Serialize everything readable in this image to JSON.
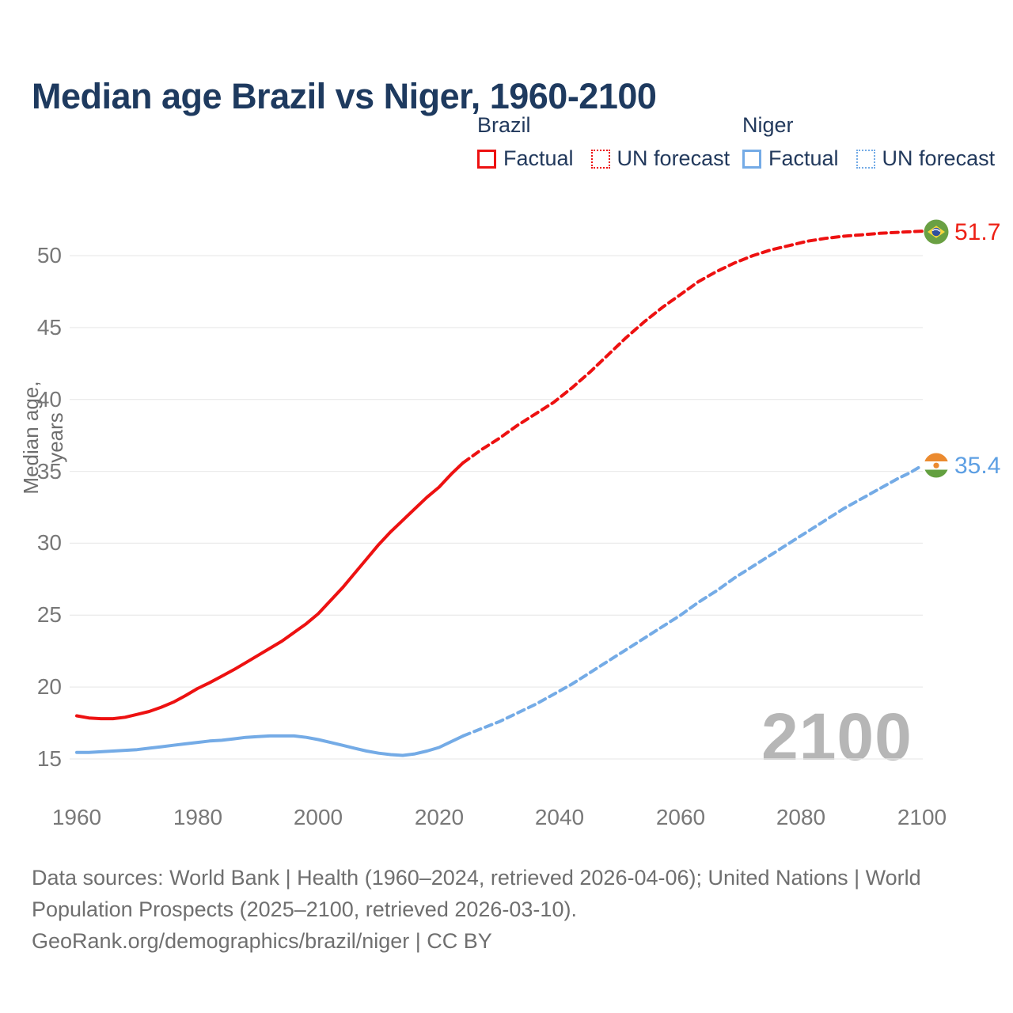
{
  "title": "Median age Brazil vs Niger, 1960-2100",
  "legend": {
    "groups": [
      {
        "name": "Brazil",
        "color": "#ed1111",
        "items": [
          {
            "label": "Factual",
            "style": "solid"
          },
          {
            "label": "UN forecast",
            "style": "dotted"
          }
        ]
      },
      {
        "name": "Niger",
        "color": "#74abe6",
        "items": [
          {
            "label": "Factual",
            "style": "solid"
          },
          {
            "label": "UN forecast",
            "style": "dotted"
          }
        ]
      }
    ]
  },
  "chart_data": {
    "type": "line",
    "title": "Median age Brazil vs Niger, 1960-2100",
    "xlabel": "",
    "ylabel": "Median age, years",
    "x_ticks": [
      1960,
      1980,
      2000,
      2020,
      2040,
      2060,
      2080,
      2100
    ],
    "y_ticks": [
      15,
      20,
      25,
      30,
      35,
      40,
      45,
      50
    ],
    "xlim": [
      1960,
      2100
    ],
    "ylim": [
      15,
      50
    ],
    "grid": "horizontal-only",
    "legend_position": "top-right",
    "watermark": "2100",
    "series": [
      {
        "name": "Brazil — Factual",
        "color": "#ed1111",
        "dash": false,
        "points": [
          [
            1960,
            18.0
          ],
          [
            1962,
            17.85
          ],
          [
            1964,
            17.8
          ],
          [
            1966,
            17.8
          ],
          [
            1968,
            17.9
          ],
          [
            1970,
            18.1
          ],
          [
            1972,
            18.3
          ],
          [
            1974,
            18.6
          ],
          [
            1976,
            18.95
          ],
          [
            1978,
            19.4
          ],
          [
            1980,
            19.9
          ],
          [
            1982,
            20.3
          ],
          [
            1984,
            20.75
          ],
          [
            1986,
            21.2
          ],
          [
            1988,
            21.7
          ],
          [
            1990,
            22.2
          ],
          [
            1992,
            22.7
          ],
          [
            1994,
            23.2
          ],
          [
            1996,
            23.8
          ],
          [
            1998,
            24.4
          ],
          [
            2000,
            25.1
          ],
          [
            2002,
            26.0
          ],
          [
            2004,
            26.9
          ],
          [
            2006,
            27.9
          ],
          [
            2008,
            28.9
          ],
          [
            2010,
            29.9
          ],
          [
            2012,
            30.8
          ],
          [
            2014,
            31.6
          ],
          [
            2016,
            32.4
          ],
          [
            2018,
            33.2
          ],
          [
            2020,
            33.9
          ],
          [
            2022,
            34.8
          ],
          [
            2024,
            35.6
          ]
        ]
      },
      {
        "name": "Brazil — UN forecast",
        "color": "#ed1111",
        "dash": true,
        "end_label": "51.7",
        "points": [
          [
            2024,
            35.6
          ],
          [
            2027,
            36.5
          ],
          [
            2030,
            37.3
          ],
          [
            2033,
            38.2
          ],
          [
            2036,
            39.0
          ],
          [
            2039,
            39.8
          ],
          [
            2042,
            40.8
          ],
          [
            2045,
            41.9
          ],
          [
            2048,
            43.1
          ],
          [
            2051,
            44.3
          ],
          [
            2054,
            45.4
          ],
          [
            2057,
            46.4
          ],
          [
            2060,
            47.3
          ],
          [
            2063,
            48.2
          ],
          [
            2066,
            48.9
          ],
          [
            2069,
            49.5
          ],
          [
            2072,
            50.0
          ],
          [
            2075,
            50.4
          ],
          [
            2078,
            50.7
          ],
          [
            2081,
            51.0
          ],
          [
            2084,
            51.2
          ],
          [
            2087,
            51.35
          ],
          [
            2090,
            51.45
          ],
          [
            2093,
            51.55
          ],
          [
            2096,
            51.62
          ],
          [
            2100,
            51.7
          ]
        ]
      },
      {
        "name": "Niger — Factual",
        "color": "#74abe6",
        "dash": false,
        "points": [
          [
            1960,
            15.45
          ],
          [
            1962,
            15.45
          ],
          [
            1964,
            15.5
          ],
          [
            1966,
            15.55
          ],
          [
            1968,
            15.6
          ],
          [
            1970,
            15.65
          ],
          [
            1972,
            15.75
          ],
          [
            1974,
            15.85
          ],
          [
            1976,
            15.95
          ],
          [
            1978,
            16.05
          ],
          [
            1980,
            16.15
          ],
          [
            1982,
            16.25
          ],
          [
            1984,
            16.3
          ],
          [
            1986,
            16.4
          ],
          [
            1988,
            16.5
          ],
          [
            1990,
            16.55
          ],
          [
            1992,
            16.6
          ],
          [
            1994,
            16.6
          ],
          [
            1996,
            16.6
          ],
          [
            1998,
            16.5
          ],
          [
            2000,
            16.35
          ],
          [
            2002,
            16.15
          ],
          [
            2004,
            15.95
          ],
          [
            2006,
            15.75
          ],
          [
            2008,
            15.55
          ],
          [
            2010,
            15.4
          ],
          [
            2012,
            15.3
          ],
          [
            2014,
            15.25
          ],
          [
            2016,
            15.35
          ],
          [
            2018,
            15.55
          ],
          [
            2020,
            15.8
          ],
          [
            2022,
            16.2
          ],
          [
            2024,
            16.6
          ]
        ]
      },
      {
        "name": "Niger — UN forecast",
        "color": "#74abe6",
        "dash": true,
        "end_label": "35.4",
        "points": [
          [
            2024,
            16.6
          ],
          [
            2027,
            17.1
          ],
          [
            2030,
            17.6
          ],
          [
            2033,
            18.2
          ],
          [
            2036,
            18.8
          ],
          [
            2039,
            19.5
          ],
          [
            2042,
            20.2
          ],
          [
            2045,
            21.0
          ],
          [
            2048,
            21.8
          ],
          [
            2051,
            22.6
          ],
          [
            2054,
            23.4
          ],
          [
            2057,
            24.2
          ],
          [
            2060,
            25.0
          ],
          [
            2063,
            25.9
          ],
          [
            2066,
            26.7
          ],
          [
            2069,
            27.6
          ],
          [
            2072,
            28.4
          ],
          [
            2075,
            29.2
          ],
          [
            2078,
            30.0
          ],
          [
            2081,
            30.8
          ],
          [
            2084,
            31.6
          ],
          [
            2087,
            32.4
          ],
          [
            2090,
            33.1
          ],
          [
            2093,
            33.8
          ],
          [
            2096,
            34.5
          ],
          [
            2098,
            34.9
          ],
          [
            2100,
            35.4
          ]
        ]
      }
    ]
  },
  "footer": {
    "line1": "Data sources: World Bank | Health (1960–2024, retrieved 2026-04-06); United Nations | World",
    "line2": "Population Prospects (2025–2100, retrieved 2026-03-10).",
    "line3": "GeoRank.org/demographics/brazil/niger | CC BY"
  }
}
